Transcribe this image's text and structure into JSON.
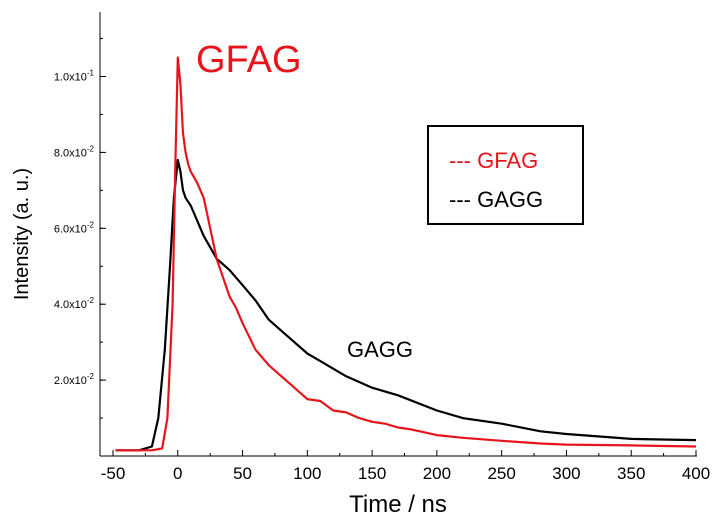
{
  "chart_data": {
    "type": "line",
    "title": "",
    "xlabel": "Time / ns",
    "ylabel": "Intensity (a. u.)",
    "xlim": [
      -50,
      400
    ],
    "ylim": [
      0.0,
      0.117
    ],
    "x_ticks": [
      -50,
      0,
      50,
      100,
      150,
      200,
      250,
      300,
      350,
      400
    ],
    "x_tick_labels": [
      "-50",
      "0",
      "50",
      "100",
      "150",
      "200",
      "250",
      "300",
      "350",
      "400"
    ],
    "y_ticks": [
      0.02,
      0.04,
      0.06,
      0.08,
      0.1
    ],
    "y_tick_labels": [
      {
        "mantissa": "2.0x10",
        "exp": "-2"
      },
      {
        "mantissa": "4.0x10",
        "exp": "-2"
      },
      {
        "mantissa": "6.0x10",
        "exp": "-2"
      },
      {
        "mantissa": "8.0x10",
        "exp": "-2"
      },
      {
        "mantissa": "1.0x10",
        "exp": "-1"
      }
    ],
    "grid": false,
    "legend": {
      "placement": "upper-right",
      "entries": [
        {
          "label": "--- GFAG",
          "color": "#e8141b"
        },
        {
          "label": "--- GAGG",
          "color": "#000000"
        }
      ]
    },
    "annotations": [
      {
        "text": "GFAG",
        "color": "#e8141b"
      },
      {
        "text": "GAGG",
        "color": "#000000"
      }
    ],
    "series": [
      {
        "name": "GFAG",
        "color": "#e8141b",
        "x": [
          -48,
          -30,
          -20,
          -12,
          -8,
          -4,
          -2,
          0,
          2,
          4,
          6,
          8,
          10,
          15,
          20,
          25,
          30,
          35,
          40,
          45,
          50,
          60,
          70,
          80,
          90,
          100,
          110,
          120,
          130,
          140,
          150,
          160,
          170,
          180,
          200,
          220,
          250,
          280,
          300,
          350,
          400
        ],
        "y": [
          0.0015,
          0.0015,
          0.0015,
          0.002,
          0.01,
          0.04,
          0.075,
          0.105,
          0.098,
          0.085,
          0.08,
          0.077,
          0.075,
          0.072,
          0.068,
          0.06,
          0.052,
          0.047,
          0.042,
          0.039,
          0.035,
          0.028,
          0.024,
          0.021,
          0.018,
          0.015,
          0.0145,
          0.012,
          0.0115,
          0.01,
          0.009,
          0.0085,
          0.0075,
          0.007,
          0.0055,
          0.0048,
          0.004,
          0.0033,
          0.003,
          0.0028,
          0.0025
        ]
      },
      {
        "name": "GAGG",
        "color": "#000000",
        "x": [
          -48,
          -30,
          -20,
          -15,
          -10,
          -6,
          -3,
          0,
          2,
          4,
          6,
          8,
          10,
          15,
          20,
          25,
          30,
          40,
          50,
          60,
          70,
          80,
          90,
          100,
          110,
          120,
          130,
          140,
          150,
          170,
          200,
          220,
          250,
          280,
          300,
          350,
          400
        ],
        "y": [
          0.0015,
          0.0015,
          0.0025,
          0.01,
          0.028,
          0.05,
          0.068,
          0.078,
          0.075,
          0.07,
          0.068,
          0.067,
          0.066,
          0.062,
          0.058,
          0.055,
          0.052,
          0.049,
          0.045,
          0.041,
          0.036,
          0.033,
          0.03,
          0.027,
          0.025,
          0.023,
          0.021,
          0.0195,
          0.018,
          0.016,
          0.012,
          0.01,
          0.0085,
          0.0065,
          0.0058,
          0.0045,
          0.0042
        ]
      }
    ]
  }
}
